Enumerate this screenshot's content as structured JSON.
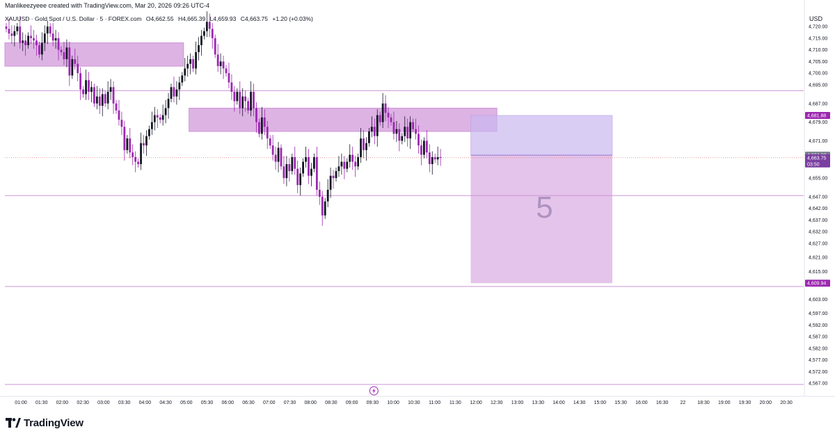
{
  "header": {
    "created_text": "Manlikeezyeee created with TradingView.com, Mar 20, 2026 09:26 UTC-4"
  },
  "symbol": {
    "name": "XAUUSD · Gold Spot / U.S. Dollar · 5 · FOREX.com",
    "open": "O4,662.55",
    "high": "H4,665.39",
    "low": "L4,659.93",
    "close": "C4,663.75",
    "change": "+1.20 (+0.03%)"
  },
  "currency": "USD",
  "branding": {
    "logo_text": "TradingView",
    "logo_icon": "tradingview-logo-icon"
  },
  "colors": {
    "up_candle": "#131722",
    "down_candle": "#9c27b0",
    "zone_fill": "#ce93d8",
    "zone_light": "#c9b8ef",
    "level_line": "#ce93d8",
    "price_tag": "#9c27b0",
    "last_price_tag": "#7b3fa0"
  },
  "chart_data": {
    "type": "candlestick",
    "ylim": [
      4562,
      4726
    ],
    "y_ticks": [
      "4,720.00",
      "4,715.00",
      "4,710.00",
      "4,705.00",
      "4,700.00",
      "4,695.00",
      "4,687.00",
      "4,679.00",
      "4,671.00",
      "4,663.75",
      "4,655.00",
      "4,647.00",
      "4,642.00",
      "4,637.00",
      "4,632.00",
      "4,627.00",
      "4,621.00",
      "4,615.00",
      "4,609.94",
      "4,603.00",
      "4,597.00",
      "4,592.00",
      "4,587.00",
      "4,582.00",
      "4,577.00",
      "4,572.00",
      "4,567.00"
    ],
    "y_tick_values": [
      4720,
      4715,
      4710,
      4705,
      4700,
      4695,
      4687,
      4679,
      4671,
      4663.75,
      4655,
      4647,
      4642,
      4637,
      4632,
      4627,
      4621,
      4615,
      4609.94,
      4603,
      4597,
      4592,
      4587,
      4582,
      4577,
      4572,
      4567
    ],
    "x_ticks": [
      "01:00",
      "01:30",
      "02:00",
      "02:30",
      "03:00",
      "03:30",
      "04:00",
      "04:30",
      "05:00",
      "05:30",
      "06:00",
      "06:30",
      "07:00",
      "07:30",
      "08:00",
      "08:30",
      "09:00",
      "09:30",
      "10:00",
      "10:30",
      "11:00",
      "11:30",
      "12:00",
      "12:30",
      "13:00",
      "13:30",
      "14:00",
      "14:30",
      "15:00",
      "15:30",
      "16:00",
      "16:30",
      "22",
      "18:30",
      "19:00",
      "19:30",
      "20:00",
      "20:30"
    ],
    "x_tick_values": [
      60,
      90,
      120,
      150,
      180,
      210,
      240,
      270,
      300,
      330,
      360,
      390,
      420,
      450,
      480,
      510,
      540,
      570,
      600,
      630,
      660,
      690,
      720,
      750,
      780,
      810,
      840,
      870,
      900,
      930,
      960,
      990,
      1020,
      1050,
      1080,
      1110,
      1140,
      1170
    ],
    "xlim": [
      44,
      1196
    ],
    "candles_close": [
      4719,
      4717,
      4716,
      4718,
      4720,
      4713,
      4714,
      4712,
      4716,
      4715,
      4714,
      4712,
      4708,
      4713,
      4717,
      4720,
      4717,
      4714,
      4715,
      4710,
      4709,
      4706,
      4711,
      4699,
      4706,
      4704,
      4700,
      4693,
      4691,
      4697,
      4692,
      4694,
      4687,
      4690,
      4686,
      4691,
      4687,
      4692,
      4694,
      4687,
      4684,
      4680,
      4677,
      4667,
      4672,
      4666,
      4664,
      4662,
      4661,
      4670,
      4669,
      4673,
      4676,
      4679,
      4682,
      4681,
      4680,
      4682,
      4685,
      4689,
      4694,
      4690,
      4693,
      4696,
      4699,
      4702,
      4704,
      4706,
      4702,
      4709,
      4712,
      4716,
      4718,
      4722,
      4719,
      4715,
      4708,
      4703,
      4705,
      4702,
      4700,
      4696,
      4692,
      4688,
      4692,
      4685,
      4690,
      4688,
      4684,
      4692,
      4685,
      4679,
      4674,
      4681,
      4677,
      4672,
      4669,
      4665,
      4662,
      4668,
      4660,
      4655,
      4661,
      4658,
      4664,
      4659,
      4652,
      4657,
      4662,
      4664,
      4656,
      4659,
      4664,
      4650,
      4647,
      4639,
      4645,
      4650,
      4656,
      4655,
      4658,
      4660,
      4662,
      4659,
      4662,
      4665,
      4662,
      4660,
      4664,
      4672,
      4667,
      4670,
      4675,
      4677,
      4673,
      4682,
      4679,
      4687,
      4683,
      4681,
      4679,
      4674,
      4676,
      4671,
      4673,
      4677,
      4672,
      4679,
      4676,
      4674,
      4669,
      4665,
      4671,
      4666,
      4661,
      4664,
      4663,
      4664,
      4663.75
    ],
    "current_price": 4663.75,
    "current_price_countdown": "03:50",
    "entry_price": 4664.82,
    "target_price": 4609.94,
    "stop_price": 4681.88,
    "levels": [
      4692.5,
      4647.5,
      4608.5,
      4566.5
    ],
    "zones": [
      {
        "name": "upper-zone",
        "x_range": [
          0,
          64
        ],
        "y_range": [
          4703,
          4713
        ]
      },
      {
        "name": "middle-zone",
        "x_range": [
          67,
          178
        ],
        "y_range": [
          4675,
          4685
        ]
      }
    ],
    "position_tool": {
      "x_range": [
        169,
        219
      ],
      "entry": 4664.82,
      "stop": 4681.88,
      "target": 4609.94
    },
    "annotation": "5",
    "ylabel_highlight": [
      "4,681.88",
      "4,664.82",
      "4,663.75",
      "4,609.94"
    ]
  }
}
